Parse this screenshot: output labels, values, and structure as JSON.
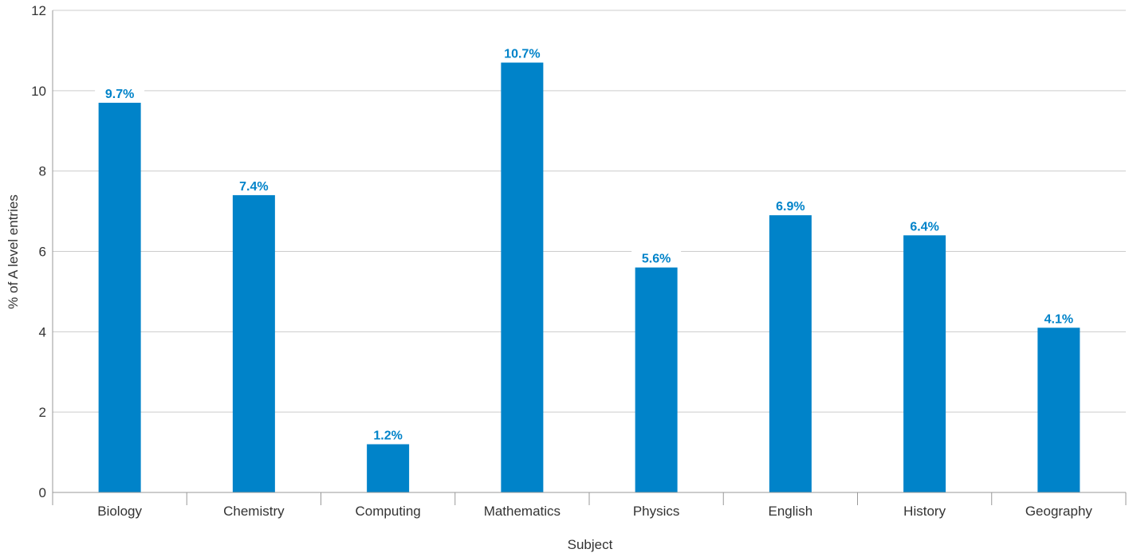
{
  "chart_data": {
    "type": "bar",
    "categories": [
      "Biology",
      "Chemistry",
      "Computing",
      "Mathematics",
      "Physics",
      "English",
      "History",
      "Geography"
    ],
    "values": [
      9.7,
      7.4,
      1.2,
      10.7,
      5.6,
      6.9,
      6.4,
      4.1
    ],
    "data_labels": [
      "9.7%",
      "7.4%",
      "1.2%",
      "10.7%",
      "5.6%",
      "6.9%",
      "6.4%",
      "4.1%"
    ],
    "title": "",
    "xlabel": "Subject",
    "ylabel": "% of A level entries",
    "ylim": [
      0,
      12
    ],
    "yticks": [
      0,
      2,
      4,
      6,
      8,
      10,
      12
    ],
    "grid": true,
    "bar_color": "#0083c9",
    "label_color": "#0083c9"
  }
}
